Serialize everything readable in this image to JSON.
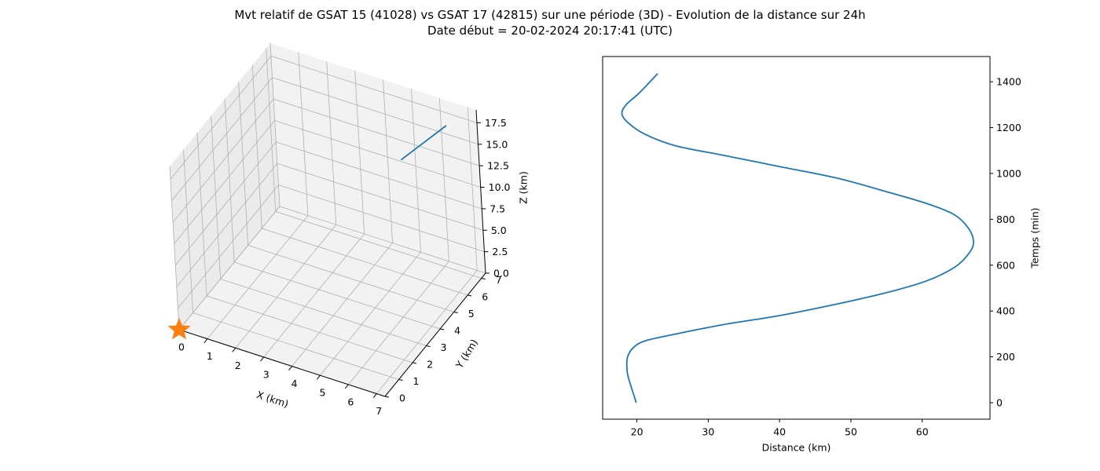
{
  "figure": {
    "title_line1": "Mvt relatif de GSAT 15 (41028) vs GSAT 17 (42815) sur une période (3D) - Evolution de la distance sur 24h",
    "title_line2": "Date début = 20-02-2024 20:17:41 (UTC)"
  },
  "chart_data": [
    {
      "type": "line3d",
      "title": "",
      "xlabel": "X (km)",
      "ylabel": "Y (km)",
      "zlabel": "Z (km)",
      "xlim": [
        0,
        7.3
      ],
      "ylim": [
        0,
        7.3
      ],
      "zlim": [
        0,
        19.0
      ],
      "xticks": [
        "0",
        "1",
        "2",
        "3",
        "4",
        "5",
        "6",
        "7"
      ],
      "yticks": [
        "0",
        "1",
        "2",
        "3",
        "4",
        "5",
        "6",
        "7"
      ],
      "zticks": [
        "0.0",
        "2.5",
        "5.0",
        "7.5",
        "10.0",
        "12.5",
        "15.0",
        "17.5"
      ],
      "grid": true,
      "series": [
        {
          "color": "#1f77b4",
          "x": [
            5.6,
            6.4
          ],
          "y": [
            5.2,
            6.9
          ],
          "z": [
            15.5,
            17.0
          ]
        }
      ],
      "markers": [
        {
          "shape": "star",
          "color": "#ff7f0e",
          "x": 0,
          "y": 0,
          "z": 0
        }
      ]
    },
    {
      "type": "line",
      "title": "",
      "xlabel": "Distance (km)",
      "ylabel": "Temps (min)",
      "xlim": [
        15.2,
        69.5
      ],
      "ylim": [
        -72,
        1510
      ],
      "xticks": [
        "20",
        "30",
        "40",
        "50",
        "60"
      ],
      "yticks": [
        "0",
        "200",
        "400",
        "600",
        "800",
        "1000",
        "1200",
        "1400"
      ],
      "grid": false,
      "y_axis_side": "right",
      "series": [
        {
          "color": "#1f77b4",
          "x": [
            19.9,
            19.3,
            18.8,
            18.6,
            18.7,
            19.5,
            21.2,
            25.5,
            32.0,
            40.0,
            48.0,
            55.0,
            60.5,
            64.5,
            66.5,
            67.2,
            66.5,
            64.5,
            60.5,
            55.0,
            48.0,
            40.0,
            32.0,
            25.5,
            21.2,
            18.8,
            17.9,
            18.5,
            20.3,
            22.9
          ],
          "y": [
            0,
            60,
            110,
            150,
            200,
            240,
            270,
            300,
            340,
            380,
            430,
            480,
            530,
            590,
            650,
            700,
            760,
            820,
            870,
            920,
            980,
            1030,
            1080,
            1120,
            1170,
            1220,
            1260,
            1300,
            1350,
            1435
          ]
        }
      ]
    }
  ]
}
